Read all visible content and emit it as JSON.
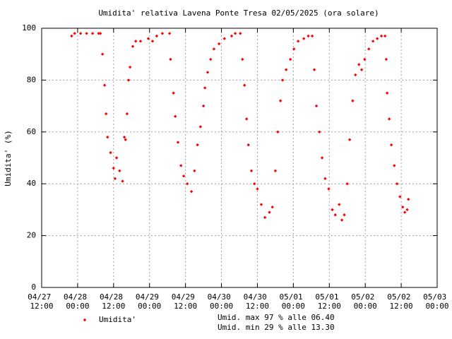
{
  "chart_data": {
    "type": "scatter",
    "title": "Umidita' relativa Lavena Ponte Tresa 02/05/2025 (ora solare)",
    "ylabel": "Umidita' (%)",
    "notes": [
      "Umid. max 97 % alle 06.40",
      "Umid. min 29 % alle 13.30"
    ],
    "xlim": [
      0,
      132
    ],
    "ylim": [
      0,
      100
    ],
    "xticks": [
      {
        "value": 0,
        "label": "04/27 12:00"
      },
      {
        "value": 12,
        "label": "04/28 00:00"
      },
      {
        "value": 24,
        "label": "04/28 12:00"
      },
      {
        "value": 36,
        "label": "04/29 00:00"
      },
      {
        "value": 48,
        "label": "04/29 12:00"
      },
      {
        "value": 60,
        "label": "04/30 00:00"
      },
      {
        "value": 72,
        "label": "04/30 12:00"
      },
      {
        "value": 84,
        "label": "05/01 00:00"
      },
      {
        "value": 96,
        "label": "05/01 12:00"
      },
      {
        "value": 108,
        "label": "05/02 00:00"
      },
      {
        "value": 120,
        "label": "05/02 12:00"
      },
      {
        "value": 132,
        "label": "05/03 00:00"
      }
    ],
    "yticks": [
      0,
      20,
      40,
      60,
      80,
      100
    ],
    "grid": true,
    "series": [
      {
        "name": "Umidita'",
        "color": "#ff0000",
        "x": [
          10,
          11,
          13,
          15,
          17,
          19,
          19.6,
          20.3,
          21,
          21.5,
          22,
          23,
          24,
          24.5,
          25,
          26,
          27,
          27.6,
          28,
          28.5,
          29,
          29.5,
          30.4,
          31.4,
          33,
          35.6,
          37,
          38.4,
          40.3,
          42.7,
          43,
          44,
          44.6,
          45.5,
          46.5,
          47.4,
          48.6,
          50,
          51,
          52,
          53,
          54,
          54.5,
          55.4,
          56.4,
          57.5,
          59.2,
          61,
          63.4,
          64.6,
          66.3,
          67,
          67.7,
          68.4,
          69,
          70,
          71,
          72,
          73.3,
          74.5,
          76,
          77,
          78,
          78.8,
          79.7,
          80.4,
          81.6,
          83,
          84.2,
          85.6,
          87.5,
          89,
          90.3,
          91,
          91.7,
          92.7,
          93.6,
          94.6,
          95.8,
          97,
          98,
          99.3,
          100.2,
          101,
          102,
          102.8,
          103.8,
          104.7,
          105.9,
          106.8,
          107.8,
          109.2,
          110.6,
          112,
          113.4,
          114.6,
          115,
          115.3,
          116,
          116.7,
          117.7,
          118.6,
          119.6,
          120.5,
          121.2,
          122,
          122.4
        ],
        "values": [
          97,
          98,
          98,
          98,
          98,
          98,
          98,
          90,
          78,
          67,
          58,
          52,
          46,
          42,
          50,
          45,
          41,
          58,
          57,
          67,
          80,
          85,
          93,
          95,
          95,
          96,
          95,
          97,
          98,
          98,
          88,
          75,
          66,
          56,
          47,
          43,
          40,
          37,
          45,
          55,
          62,
          70,
          77,
          83,
          88,
          92,
          94,
          96,
          97,
          98,
          98,
          88,
          78,
          65,
          55,
          45,
          40,
          38,
          32,
          27,
          29,
          31,
          45,
          60,
          72,
          80,
          84,
          88,
          92,
          95,
          96,
          97,
          97,
          84,
          70,
          60,
          50,
          42,
          38,
          30,
          28,
          32,
          26,
          28,
          40,
          57,
          72,
          82,
          86,
          84,
          88,
          92,
          95,
          96,
          97,
          97,
          88,
          75,
          65,
          55,
          47,
          40,
          35,
          31,
          29,
          30,
          34
        ]
      }
    ]
  }
}
